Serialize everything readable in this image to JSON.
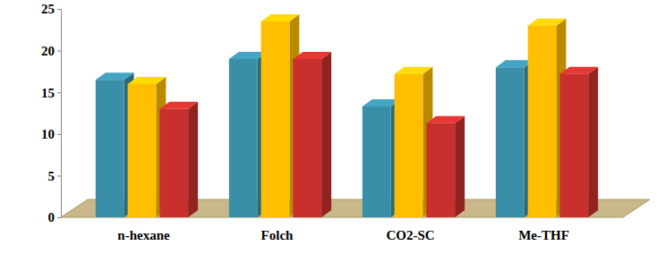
{
  "chart_data": {
    "type": "bar",
    "categories": [
      "n-hexane",
      "Folch",
      "CO2-SC",
      "Me-THF"
    ],
    "series": [
      {
        "color": "#3a8fa8",
        "values": [
          16.5,
          19,
          13.3,
          18
        ]
      },
      {
        "color": "#ffbe00",
        "values": [
          16,
          23.5,
          17.2,
          23
        ]
      },
      {
        "color": "#c8302e",
        "values": [
          13,
          19,
          11.3,
          17.2
        ]
      }
    ],
    "ylim": [
      0,
      25
    ],
    "yticks": [
      0,
      5,
      10,
      15,
      20,
      25
    ],
    "grid": false
  }
}
